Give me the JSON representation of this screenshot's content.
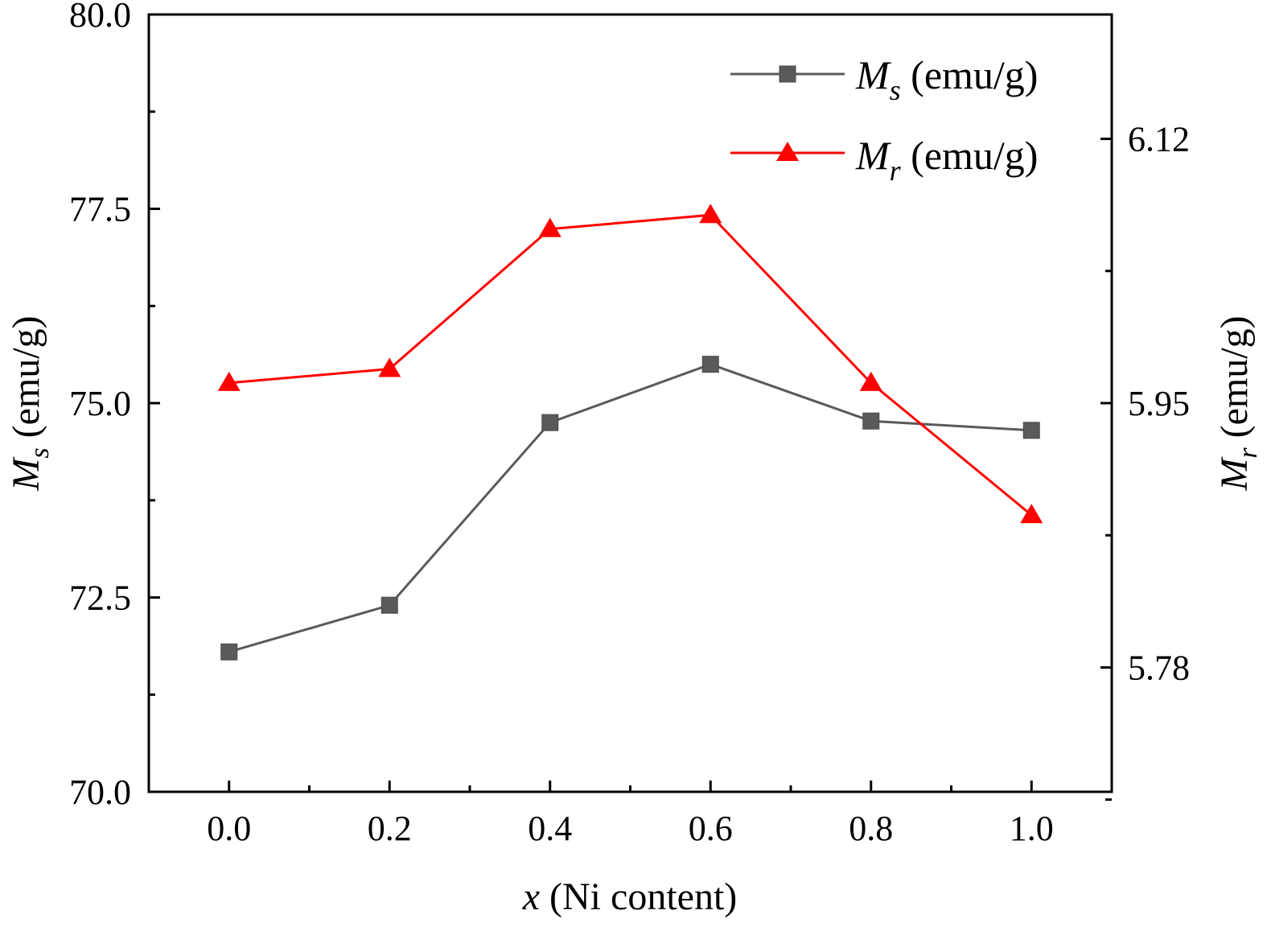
{
  "chart_data": {
    "type": "line",
    "x": [
      0.0,
      0.2,
      0.4,
      0.6,
      0.8,
      1.0
    ],
    "xlim": [
      -0.1,
      1.1
    ],
    "x_ticks": [
      "0.0",
      "0.2",
      "0.4",
      "0.6",
      "0.8",
      "1.0"
    ],
    "xlabel": {
      "var": "x",
      "rest": " (Ni content)"
    },
    "y_left": {
      "label": {
        "var": "M",
        "sub": "s",
        "rest": " (emu/g)"
      },
      "ylim": [
        70.0,
        80.0
      ],
      "ticks": [
        "70.0",
        "72.5",
        "75.0",
        "77.5",
        "80.0"
      ]
    },
    "y_right": {
      "label": {
        "var": "M",
        "sub": "r",
        "rest": " (emu/g)"
      },
      "ylim": [
        5.7,
        6.2
      ],
      "ticks": [
        "5.78",
        "5.95",
        "6.12"
      ]
    },
    "series": [
      {
        "name": "M_s (emu/g)",
        "legend": {
          "var": "M",
          "sub": "s",
          "rest": " (emu/g)"
        },
        "axis": "left",
        "marker": "square",
        "color": "#5a5a5a",
        "values": [
          71.8,
          72.4,
          74.75,
          75.5,
          74.77,
          74.65
        ]
      },
      {
        "name": "M_r (emu/g)",
        "legend": {
          "var": "M",
          "sub": "r",
          "rest": " (emu/g)"
        },
        "axis": "right",
        "marker": "triangle",
        "color": "#ff0000",
        "values": [
          5.963,
          5.972,
          6.062,
          6.071,
          5.963,
          5.878
        ]
      }
    ],
    "legend_position": "top-right",
    "grid": false
  }
}
